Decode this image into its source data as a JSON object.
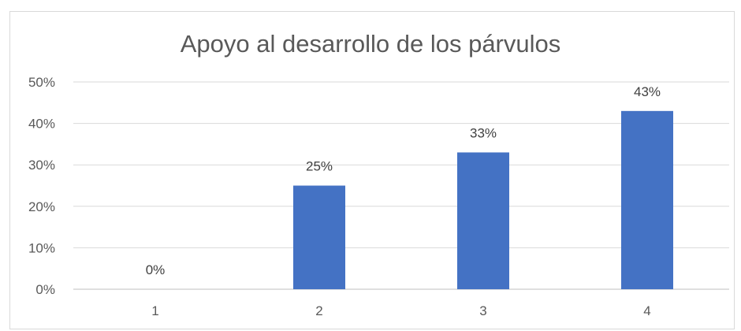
{
  "chart_data": {
    "type": "bar",
    "title": "Apoyo al desarrollo de los párvulos",
    "xlabel": "",
    "ylabel": "",
    "categories": [
      "1",
      "2",
      "3",
      "4"
    ],
    "values": [
      0,
      25,
      33,
      43
    ],
    "data_labels": [
      "0%",
      "25%",
      "33%",
      "43%"
    ],
    "ylim": [
      0,
      50
    ],
    "yticks": [
      0,
      10,
      20,
      30,
      40,
      50
    ],
    "ytick_labels": [
      "0%",
      "10%",
      "20%",
      "30%",
      "40%",
      "50%"
    ],
    "grid": true,
    "legend": "none",
    "bar_color": "#4472C4"
  }
}
